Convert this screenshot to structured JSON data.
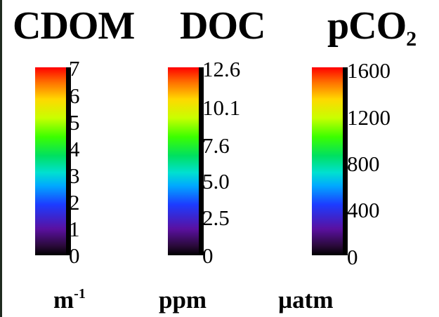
{
  "colorbars": [
    {
      "title": "CDOM",
      "title_sub": "",
      "ticks": [
        "7",
        "6",
        "5",
        "4",
        "3",
        "2",
        "1",
        "0"
      ],
      "unit": "m",
      "unit_sup": "-1"
    },
    {
      "title": "DOC",
      "title_sub": "",
      "ticks": [
        "12.6",
        "10.1",
        "7.6",
        "5.0",
        "2.5",
        "0"
      ],
      "unit": "ppm",
      "unit_sup": ""
    },
    {
      "title": "pCO",
      "title_sub": "2",
      "ticks": [
        "1600",
        "1200",
        "800",
        "400",
        "0"
      ],
      "unit": "µatm",
      "unit_sup": ""
    }
  ],
  "colormap": "rainbow (black-purple-blue-cyan-green-yellow-orange-red)"
}
